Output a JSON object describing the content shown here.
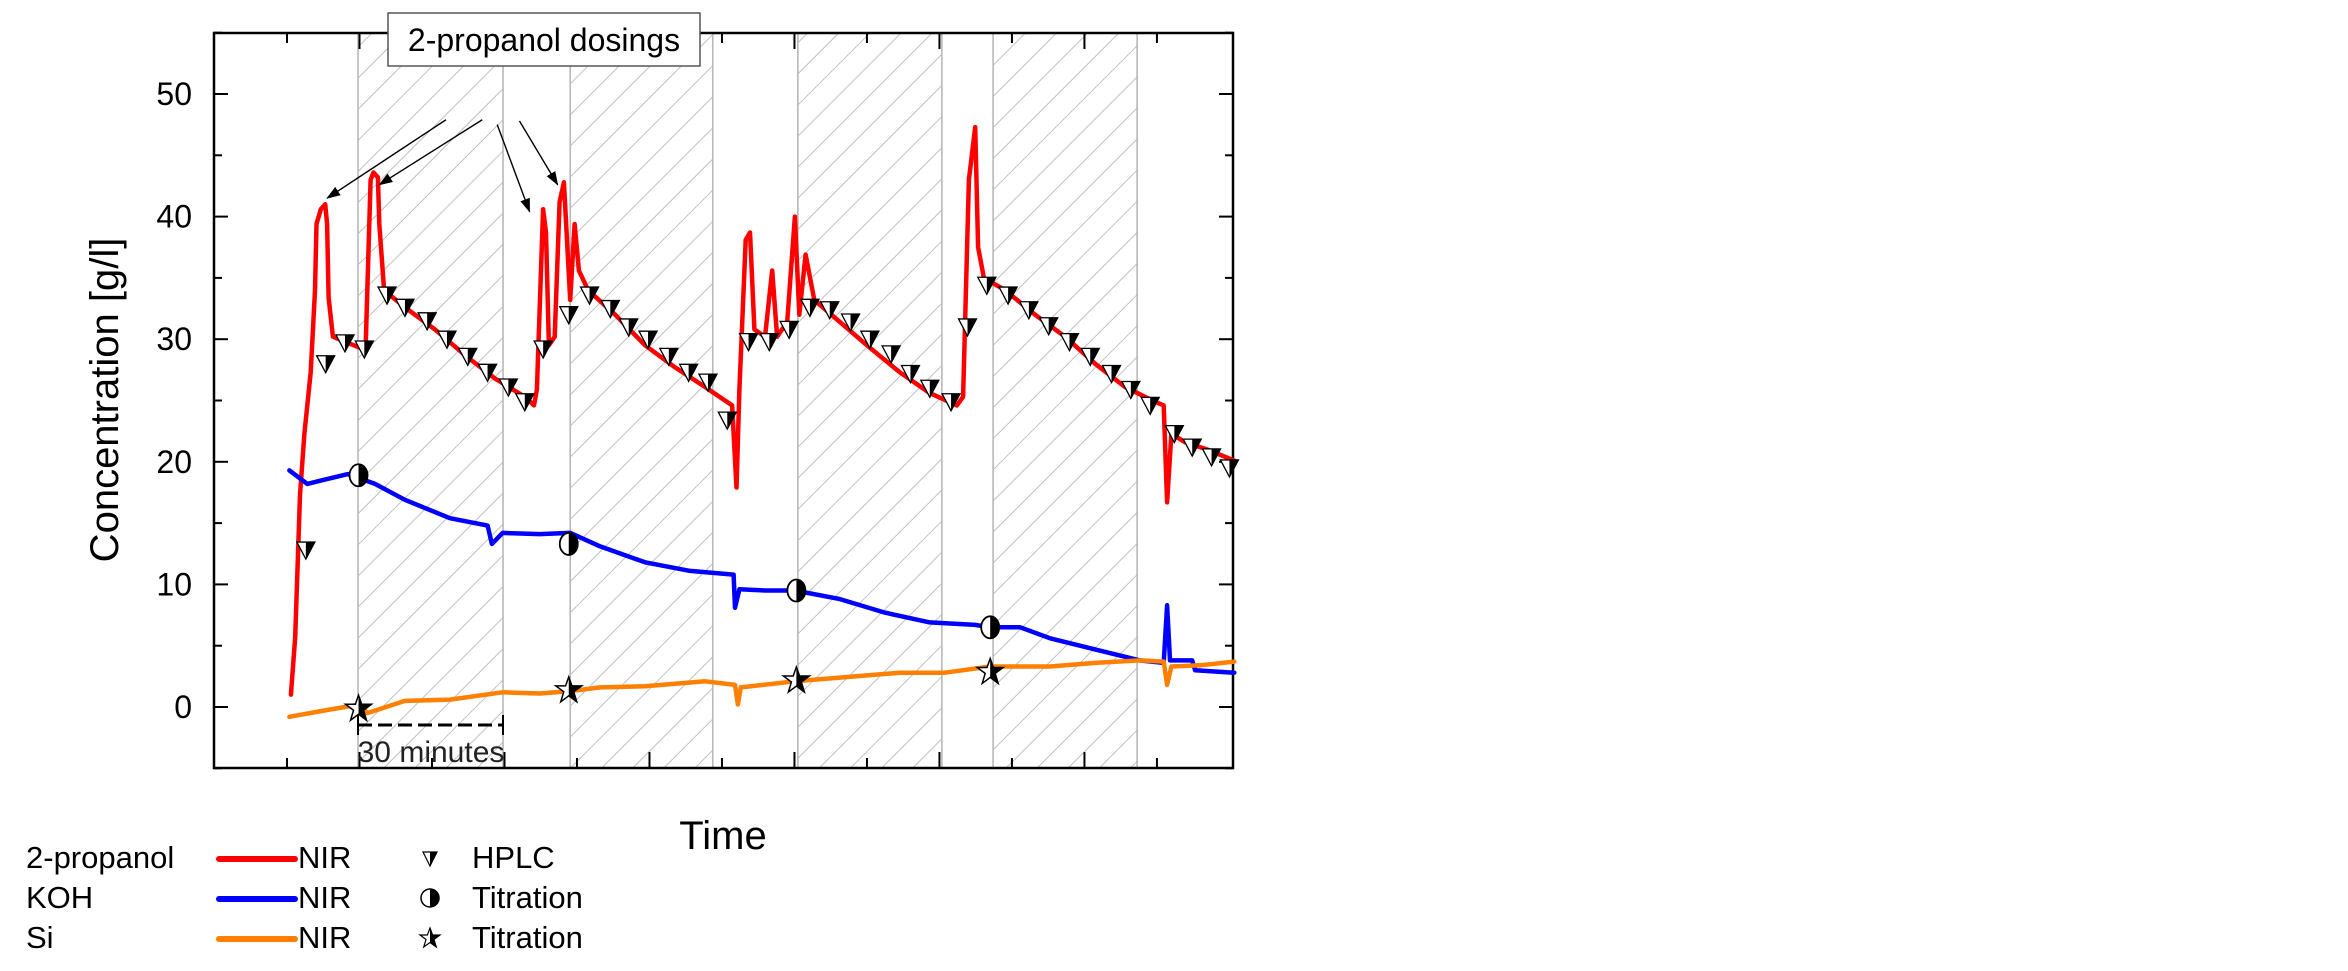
{
  "chart_data": {
    "type": "line",
    "title": "",
    "xlabel": "Time",
    "ylabel": "Concentration [g/l]",
    "xlim": [
      -15.1,
      195.8
    ],
    "ylim": [
      -5,
      55
    ],
    "x_unit_note": "x in minutes from first tick (scale bar = 30 minutes); tick labels not shown",
    "y_ticks": [
      0,
      10,
      20,
      30,
      40,
      50
    ],
    "y_tick_labels": [
      "0",
      "10",
      "20",
      "30",
      "40",
      "50"
    ],
    "x_ticks": [
      0,
      15,
      30,
      45,
      60,
      75,
      90,
      105,
      120,
      135,
      150,
      165,
      180
    ],
    "grid": false,
    "shaded_regions": [
      {
        "x0": 14.7,
        "x1": 44.7,
        "pattern": "diagonal-hatch"
      },
      {
        "x0": 58.6,
        "x1": 88.1,
        "pattern": "diagonal-hatch"
      },
      {
        "x0": 105.7,
        "x1": 135.5,
        "pattern": "diagonal-hatch"
      },
      {
        "x0": 146.1,
        "x1": 175.9,
        "pattern": "diagonal-hatch"
      }
    ],
    "annotations": [
      {
        "text": "2-propanol dosings",
        "box": true,
        "arrows_to": [
          [
            8.3,
            41.5
          ],
          [
            19.1,
            42.6
          ],
          [
            50.2,
            40.4
          ],
          [
            56.0,
            42.6
          ]
        ],
        "arrow_from": [
          [
            32.9,
            47.9
          ],
          [
            40.4,
            47.9
          ],
          [
            43.5,
            47.5
          ],
          [
            48.1,
            47.8
          ]
        ]
      },
      {
        "text": "30 minutes",
        "scale_bar": [
          14.7,
          44.7
        ],
        "y": -1.5
      }
    ],
    "series": [
      {
        "name": "2-propanol NIR",
        "kind": "line",
        "color": "#ff0000",
        "x": [
          0.8,
          1.7,
          2.7,
          3.6,
          4.9,
          5.8,
          6.1,
          7.0,
          7.9,
          8.3,
          8.6,
          9.5,
          12.0,
          15.1,
          16.3,
          17.3,
          17.9,
          18.8,
          19.1,
          20.1,
          24.4,
          30.6,
          36.8,
          43.0,
          49.2,
          51.1,
          51.7,
          53.0,
          53.6,
          54.2,
          55.4,
          56.4,
          57.3,
          58.6,
          59.5,
          60.4,
          62.3,
          67.9,
          74.1,
          80.3,
          86.5,
          92.1,
          93.0,
          93.6,
          94.9,
          95.8,
          96.7,
          98.9,
          100.4,
          101.4,
          103.5,
          105.1,
          106.0,
          107.3,
          109.1,
          114.4,
          120.6,
          126.8,
          133.0,
          138.6,
          139.9,
          141.1,
          142.4,
          143.0,
          144.2,
          148.6,
          154.8,
          161.0,
          167.2,
          173.4,
          179.6,
          181.4,
          182.1,
          183.0,
          185.8,
          190.4,
          196.0
        ],
        "y": [
          1.0,
          5.7,
          17.3,
          22.3,
          27.3,
          34.0,
          39.4,
          40.6,
          41.0,
          39.4,
          33.4,
          30.2,
          29.8,
          29.3,
          29.8,
          43.0,
          43.6,
          43.2,
          39.4,
          34.0,
          32.6,
          30.8,
          28.7,
          26.8,
          25.3,
          24.6,
          25.9,
          40.6,
          38.7,
          29.5,
          30.2,
          41.2,
          42.8,
          33.2,
          39.4,
          35.6,
          34.0,
          32.0,
          29.5,
          27.7,
          26.1,
          24.6,
          17.9,
          25.9,
          38.1,
          38.7,
          30.8,
          30.2,
          35.6,
          30.2,
          31.4,
          40.0,
          32.0,
          36.9,
          33.2,
          31.4,
          29.3,
          27.3,
          25.6,
          24.6,
          25.3,
          43.0,
          47.3,
          37.5,
          35.0,
          34.0,
          32.0,
          30.2,
          28.0,
          26.1,
          24.9,
          24.6,
          16.7,
          22.3,
          21.6,
          21.0,
          20.1
        ]
      },
      {
        "name": "2-propanol HPLC",
        "kind": "scatter",
        "marker": "down-triangle-half",
        "color": "#000000",
        "x": [
          3.9,
          8.0,
          12.0,
          16.0,
          20.7,
          24.4,
          29.0,
          33.1,
          37.4,
          41.5,
          45.8,
          49.2,
          53.0,
          58.3,
          62.6,
          66.9,
          70.7,
          74.7,
          79.0,
          83.1,
          87.1,
          91.1,
          95.5,
          99.8,
          103.9,
          108.2,
          112.3,
          116.6,
          120.6,
          125.0,
          129.0,
          133.0,
          137.4,
          140.8,
          144.8,
          149.2,
          153.5,
          157.6,
          161.9,
          166.2,
          170.6,
          174.6,
          178.6,
          183.6,
          187.3,
          191.3,
          195.0
        ],
        "y": [
          12.8,
          28.0,
          29.7,
          29.2,
          33.6,
          32.6,
          31.5,
          30.0,
          28.6,
          27.3,
          26.1,
          24.9,
          29.2,
          32.0,
          33.6,
          32.5,
          31.0,
          30.0,
          28.6,
          27.3,
          26.5,
          23.4,
          29.8,
          29.8,
          30.8,
          32.6,
          32.4,
          31.4,
          30.0,
          28.8,
          27.2,
          26.0,
          24.9,
          31.0,
          34.4,
          33.6,
          32.4,
          31.1,
          29.8,
          28.6,
          27.2,
          25.9,
          24.6,
          22.3,
          21.2,
          20.4,
          19.5
        ]
      },
      {
        "name": "KOH NIR",
        "kind": "line",
        "color": "#0000ff",
        "x": [
          0.5,
          4.2,
          7.3,
          12.6,
          18.2,
          24.4,
          33.7,
          41.5,
          42.4,
          44.6,
          52.3,
          58.6,
          64.8,
          74.1,
          83.4,
          92.4,
          92.7,
          93.6,
          98.9,
          105.1,
          114.4,
          123.7,
          133.0,
          142.4,
          145.5,
          151.7,
          157.9,
          167.2,
          176.5,
          181.4,
          182.1,
          182.7,
          187.3,
          187.9,
          196.0
        ],
        "y": [
          19.3,
          18.2,
          18.5,
          19.0,
          18.2,
          16.9,
          15.4,
          14.8,
          13.3,
          14.2,
          14.1,
          14.2,
          13.1,
          11.8,
          11.1,
          10.8,
          8.1,
          9.6,
          9.5,
          9.5,
          8.8,
          7.7,
          6.9,
          6.7,
          6.5,
          6.5,
          5.6,
          4.7,
          3.8,
          3.6,
          8.3,
          3.8,
          3.8,
          3.0,
          2.8
        ]
      },
      {
        "name": "KOH Titration",
        "kind": "scatter",
        "marker": "half-filled-circle",
        "color": "#000000",
        "x": [
          14.8,
          58.3,
          105.4,
          145.5
        ],
        "y": [
          18.9,
          13.3,
          9.5,
          6.5
        ]
      },
      {
        "name": "Si NIR",
        "kind": "line",
        "color": "#ff8000",
        "x": [
          0.5,
          8.9,
          15.1,
          16.6,
          24.4,
          33.7,
          44.6,
          52.3,
          58.6,
          64.8,
          74.1,
          86.5,
          92.7,
          93.3,
          93.9,
          105.1,
          114.4,
          126.8,
          136.1,
          145.5,
          157.9,
          167.2,
          176.5,
          181.4,
          182.1,
          183.0,
          188.9,
          196.0
        ],
        "y": [
          -0.8,
          -0.2,
          0.2,
          -0.5,
          0.5,
          0.6,
          1.2,
          1.1,
          1.3,
          1.6,
          1.7,
          2.1,
          1.8,
          0.2,
          1.6,
          2.1,
          2.4,
          2.8,
          2.8,
          3.3,
          3.3,
          3.6,
          3.8,
          3.7,
          1.8,
          3.3,
          3.4,
          3.7
        ]
      },
      {
        "name": "Si Titration",
        "kind": "scatter",
        "marker": "half-filled-star",
        "color": "#000000",
        "x": [
          14.8,
          58.3,
          105.4,
          145.5
        ],
        "y": [
          -0.1,
          1.4,
          2.2,
          2.9
        ]
      }
    ],
    "legend": {
      "position": "below-left",
      "rows": [
        {
          "substance": "2-propanol",
          "line_label": "NIR",
          "line_color": "#ff0000",
          "marker": "down-triangle-half",
          "marker_label": "HPLC"
        },
        {
          "substance": "KOH",
          "line_label": "NIR",
          "line_color": "#0000ff",
          "marker": "half-filled-circle",
          "marker_label": "Titration"
        },
        {
          "substance": "Si",
          "line_label": "NIR",
          "line_color": "#ff8000",
          "marker": "half-filled-star",
          "marker_label": "Titration"
        }
      ]
    }
  },
  "labels": {
    "xlabel": "Time",
    "ylabel": "Concentration [g/l]",
    "dosing_annotation": "2-propanol dosings",
    "scale_bar": "30 minutes"
  }
}
